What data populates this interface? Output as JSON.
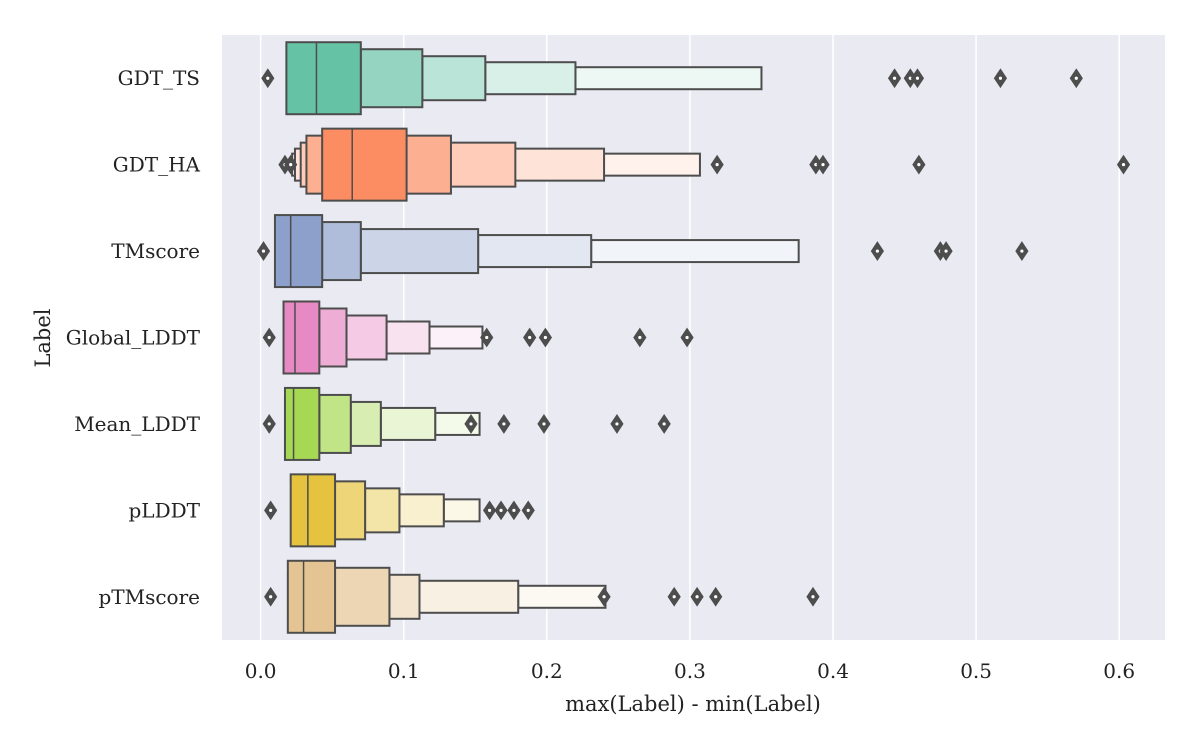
{
  "chart_data": {
    "type": "boxen",
    "orientation": "horizontal",
    "title": "",
    "xlabel": "max(Label) - min(Label)",
    "ylabel": "Label",
    "xlim": [
      -0.027,
      0.632
    ],
    "xticks": [
      0.0,
      0.1,
      0.2,
      0.3,
      0.4,
      0.5,
      0.6
    ],
    "xtick_labels": [
      "0.0",
      "0.1",
      "0.2",
      "0.3",
      "0.4",
      "0.5",
      "0.6"
    ],
    "grid": "vertical",
    "background": "#eaeaf2",
    "categories": [
      "GDT_TS",
      "GDT_HA",
      "TMscore",
      "Global_LDDT",
      "Mean_LDDT",
      "pLDDT",
      "pTMscore"
    ],
    "series": [
      {
        "label": "GDT_TS",
        "color": "#66c2a5",
        "boxes": [
          [
            0.018,
            0.07
          ],
          [
            0.07,
            0.113
          ],
          [
            0.113,
            0.157
          ],
          [
            0.157,
            0.22
          ],
          [
            0.22,
            0.35
          ]
        ],
        "median": 0.039,
        "outliers": [
          0.005,
          0.443,
          0.454,
          0.459,
          0.517,
          0.57
        ]
      },
      {
        "label": "GDT_HA",
        "color": "#fc8d62",
        "boxes": [
          [
            0.043,
            0.102
          ],
          [
            0.032,
            0.133
          ],
          [
            0.028,
            0.178
          ],
          [
            0.024,
            0.24
          ],
          [
            0.022,
            0.307
          ]
        ],
        "median": 0.064,
        "outliers": [
          0.017,
          0.021,
          0.319,
          0.388,
          0.393,
          0.46,
          0.603
        ]
      },
      {
        "label": "TMscore",
        "color": "#8da0cb",
        "boxes": [
          [
            0.01,
            0.043
          ],
          [
            0.043,
            0.07
          ],
          [
            0.07,
            0.152
          ],
          [
            0.152,
            0.231
          ],
          [
            0.231,
            0.376
          ]
        ],
        "median": 0.021,
        "outliers": [
          0.002,
          0.431,
          0.475,
          0.479,
          0.532
        ]
      },
      {
        "label": "Global_LDDT",
        "color": "#e78ac3",
        "boxes": [
          [
            0.016,
            0.041
          ],
          [
            0.041,
            0.06
          ],
          [
            0.06,
            0.088
          ],
          [
            0.088,
            0.118
          ],
          [
            0.118,
            0.155
          ]
        ],
        "median": 0.024,
        "outliers": [
          0.006,
          0.158,
          0.188,
          0.199,
          0.265,
          0.298
        ]
      },
      {
        "label": "Mean_LDDT",
        "color": "#a6d854",
        "boxes": [
          [
            0.017,
            0.041
          ],
          [
            0.041,
            0.063
          ],
          [
            0.063,
            0.084
          ],
          [
            0.084,
            0.122
          ],
          [
            0.122,
            0.153
          ]
        ],
        "median": 0.023,
        "outliers": [
          0.006,
          0.147,
          0.17,
          0.198,
          0.249,
          0.282
        ]
      },
      {
        "label": "pLDDT",
        "color": "#e5c33e",
        "boxes": [
          [
            0.021,
            0.052
          ],
          [
            0.052,
            0.073
          ],
          [
            0.073,
            0.097
          ],
          [
            0.097,
            0.128
          ],
          [
            0.128,
            0.153
          ]
        ],
        "median": 0.033,
        "outliers": [
          0.007,
          0.16,
          0.168,
          0.177,
          0.187
        ]
      },
      {
        "label": "pTMscore",
        "color": "#e5c494",
        "boxes": [
          [
            0.019,
            0.052
          ],
          [
            0.052,
            0.09
          ],
          [
            0.09,
            0.111
          ],
          [
            0.111,
            0.18
          ],
          [
            0.18,
            0.241
          ]
        ],
        "median": 0.03,
        "outliers": [
          0.007,
          0.24,
          0.289,
          0.305,
          0.318,
          0.386
        ]
      }
    ]
  }
}
